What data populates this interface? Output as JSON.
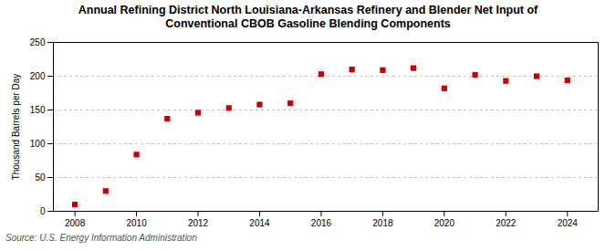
{
  "chart_data": {
    "type": "scatter",
    "title": "Annual Refining District North Louisiana-Arkansas Refinery and Blender Net Input of\nConventional CBOB Gasoline Blending Components",
    "ylabel": "Thousand Barrels per Day",
    "source": "Source: U.S. Energy Information Administration",
    "x": [
      2008,
      2009,
      2010,
      2011,
      2012,
      2013,
      2014,
      2015,
      2016,
      2017,
      2018,
      2019,
      2020,
      2021,
      2022,
      2023,
      2024
    ],
    "values": [
      10,
      30,
      84,
      137,
      146,
      153,
      158,
      160,
      203,
      210,
      209,
      212,
      182,
      202,
      193,
      200,
      194
    ],
    "color": "#cc0000",
    "marker": "square",
    "grid": "y",
    "xlim": [
      2007.3,
      2025.0
    ],
    "xticks": [
      2008,
      2010,
      2012,
      2014,
      2016,
      2018,
      2020,
      2022,
      2024
    ],
    "ylim": [
      0,
      250
    ],
    "yticks": [
      0,
      50,
      100,
      150,
      200,
      250
    ]
  }
}
